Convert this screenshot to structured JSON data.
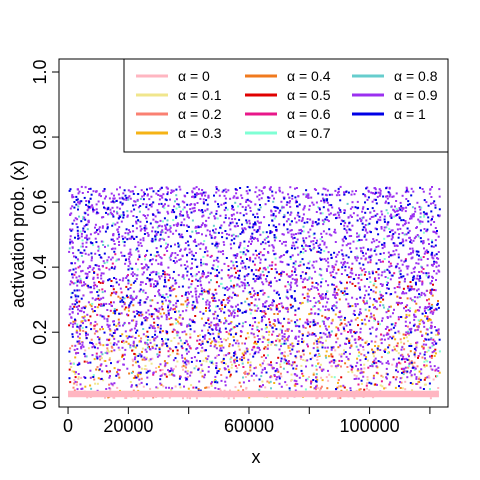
{
  "chart_data": {
    "type": "scatter",
    "title": "",
    "xlabel": "x",
    "ylabel": "activation prob. (x)",
    "xlim": [
      -3000,
      126000
    ],
    "ylim": [
      -0.03,
      1.04
    ],
    "x_ticks": [
      0,
      20000,
      40000,
      60000,
      80000,
      100000,
      120000
    ],
    "x_tick_labels": [
      "0",
      "20000",
      "",
      "60000",
      "",
      "100000",
      ""
    ],
    "y_ticks": [
      0.0,
      0.2,
      0.4,
      0.6,
      0.8,
      1.0
    ],
    "y_tick_labels": [
      "0.0",
      "0.2",
      "0.4",
      "0.6",
      "0.8",
      "1.0"
    ],
    "x_max": 123000,
    "grid": false,
    "legend_position": "top-right",
    "legend_columns": 3,
    "series": [
      {
        "name": "α = 0",
        "color": "#FFB6C1",
        "y_range": [
          0.0,
          0.15
        ]
      },
      {
        "name": "α = 0.1",
        "color": "#F0E68C",
        "y_range": [
          0.0,
          0.2
        ]
      },
      {
        "name": "α = 0.2",
        "color": "#FA8072",
        "y_range": [
          0.0,
          0.25
        ]
      },
      {
        "name": "α = 0.3",
        "color": "#F5B316",
        "y_range": [
          0.0,
          0.3
        ]
      },
      {
        "name": "α = 0.4",
        "color": "#F07A1E",
        "y_range": [
          0.0,
          0.35
        ]
      },
      {
        "name": "α = 0.5",
        "color": "#E00000",
        "y_range": [
          0.0,
          0.4
        ]
      },
      {
        "name": "α = 0.6",
        "color": "#E8178A",
        "y_range": [
          0.0,
          0.45
        ]
      },
      {
        "name": "α = 0.7",
        "color": "#7FFFD4",
        "y_range": [
          0.0,
          0.6
        ]
      },
      {
        "name": "α = 0.8",
        "color": "#66CDCD",
        "y_range": [
          0.0,
          0.63
        ]
      },
      {
        "name": "α = 0.9",
        "color": "#9B30F0",
        "y_range": [
          0.02,
          0.65
        ]
      },
      {
        "name": "α = 1",
        "color": "#0000E6",
        "y_range": [
          0.02,
          0.65
        ]
      }
    ]
  }
}
